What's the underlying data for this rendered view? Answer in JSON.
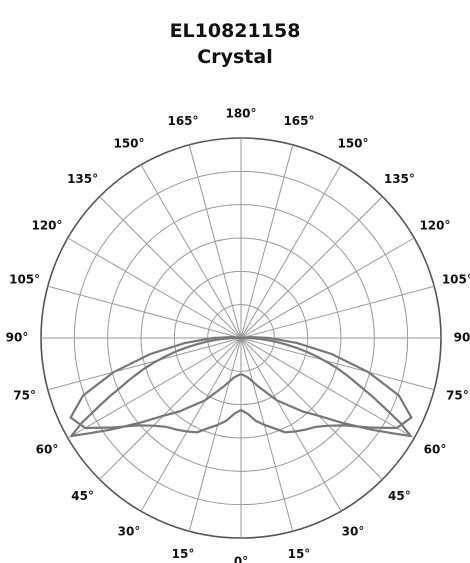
{
  "title": [
    "EL10821158",
    "Crystal"
  ],
  "chart_data": {
    "type": "polar",
    "grid": true,
    "angle_labels": {
      "left": [
        "165°",
        "150°",
        "135°",
        "120°",
        "105°",
        "90°",
        "75°",
        "60°",
        "45°",
        "30°",
        "15°"
      ],
      "right": [
        "165°",
        "150°",
        "135°",
        "120°",
        "105°",
        "90°",
        "75°",
        "60°",
        "45°",
        "30°",
        "15°"
      ],
      "top": "180°",
      "bottom": "0°"
    },
    "series": [
      {
        "comment_free": true,
        "theta_deg": [
          0,
          10,
          20,
          30,
          40,
          45,
          50,
          55,
          58,
          60,
          62,
          64,
          66,
          68,
          70,
          72,
          74,
          76,
          78,
          80,
          82,
          84,
          86,
          88,
          90,
          95,
          100
        ],
        "r": [
          0.18,
          0.2,
          0.26,
          0.36,
          0.48,
          0.55,
          0.66,
          0.8,
          0.9,
          0.98,
          0.9,
          0.8,
          0.72,
          0.64,
          0.58,
          0.52,
          0.46,
          0.4,
          0.34,
          0.28,
          0.22,
          0.17,
          0.12,
          0.08,
          0.04,
          0.02,
          0.0
        ]
      },
      {
        "theta_deg": [
          0,
          5,
          10,
          15,
          20,
          25,
          30,
          35,
          40,
          45,
          50,
          55,
          60,
          65,
          70,
          75,
          80,
          85,
          90,
          95,
          100
        ],
        "r": [
          0.36,
          0.38,
          0.42,
          0.45,
          0.48,
          0.52,
          0.54,
          0.56,
          0.58,
          0.62,
          0.68,
          0.78,
          0.9,
          0.94,
          0.84,
          0.66,
          0.46,
          0.28,
          0.14,
          0.05,
          0.0
        ]
      }
    ],
    "series_color": "#777777",
    "rings": 6
  }
}
